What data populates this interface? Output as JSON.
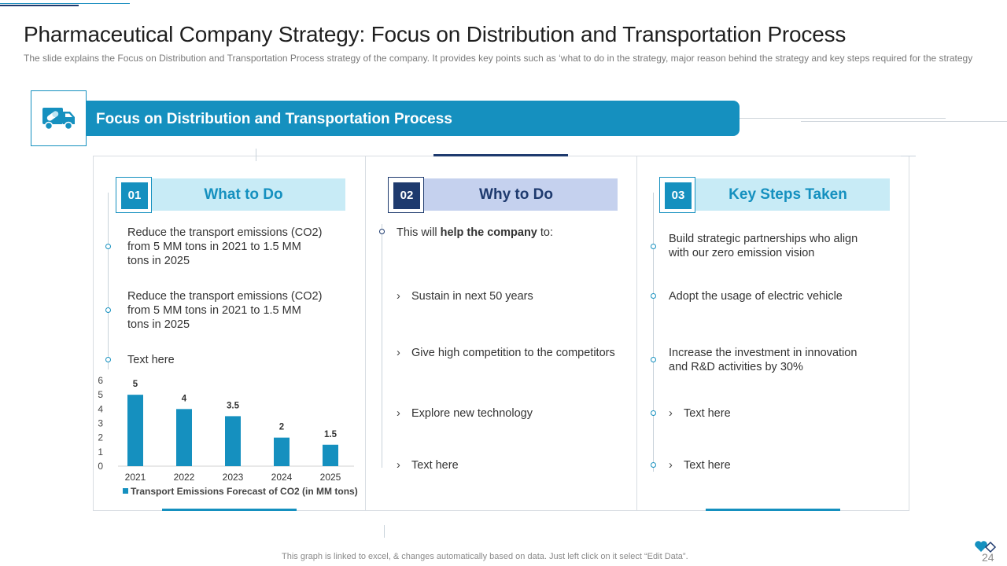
{
  "header": {
    "title": "Pharmaceutical Company Strategy: Focus on Distribution and Transportation Process",
    "subtitle": "The slide explains the Focus on Distribution and Transportation  Process strategy of the company. It provides  key points such as ‘what to do in the strategy, major reason behind the strategy and key steps required for the strategy"
  },
  "banner": {
    "label": "Focus on Distribution and Transportation Process",
    "icon": "truck-medicine-icon"
  },
  "colors": {
    "primary": "#1590bf",
    "navy": "#1e3a6e",
    "light_blue": "#c8ebf6",
    "lavender": "#c5d1ee"
  },
  "cards": [
    {
      "number": "01",
      "heading": "What to Do",
      "items": [
        "Reduce the transport emissions (CO2) from 5 MM tons in 2021 to 1.5 MM tons in 2025",
        "Reduce the transport emissions (CO2) from 5 MM tons in 2021 to 1.5 MM tons in 2025",
        "Text here"
      ]
    },
    {
      "number": "02",
      "heading": "Why to Do",
      "intro_pre": "This will ",
      "intro_bold": "help the company",
      "intro_post": " to:",
      "bullet_glyph": "›",
      "items": [
        "Sustain in next 50 years",
        "Give high competition to the competitors",
        "Explore new technology",
        "Text here"
      ]
    },
    {
      "number": "03",
      "heading": "Key Steps Taken",
      "bullet_glyph": "›",
      "items": [
        "Build strategic partnerships who align with our zero emission vision",
        "Adopt the usage of electric vehicle",
        "Increase the investment in innovation and R&D activities by 30%",
        "Text here",
        "Text here"
      ]
    }
  ],
  "chart_data": {
    "type": "bar",
    "categories": [
      "2021",
      "2022",
      "2023",
      "2024",
      "2025"
    ],
    "values": [
      5,
      4,
      3.5,
      2,
      1.5
    ],
    "data_labels": [
      "5",
      "4",
      "3.5",
      "2",
      "1.5"
    ],
    "yticks": [
      "0",
      "1",
      "2",
      "3",
      "4",
      "5",
      "6"
    ],
    "ylim": [
      0,
      6
    ],
    "legend": "Transport Emissions Forecast of CO2 (in MM tons)",
    "legend_position": "bottom",
    "grid": false,
    "title": "",
    "xlabel": "",
    "ylabel": ""
  },
  "footer": {
    "note": "This graph is linked to excel, & changes automatically based on data. Just left click on it select “Edit Data”.",
    "page_number": "24"
  }
}
